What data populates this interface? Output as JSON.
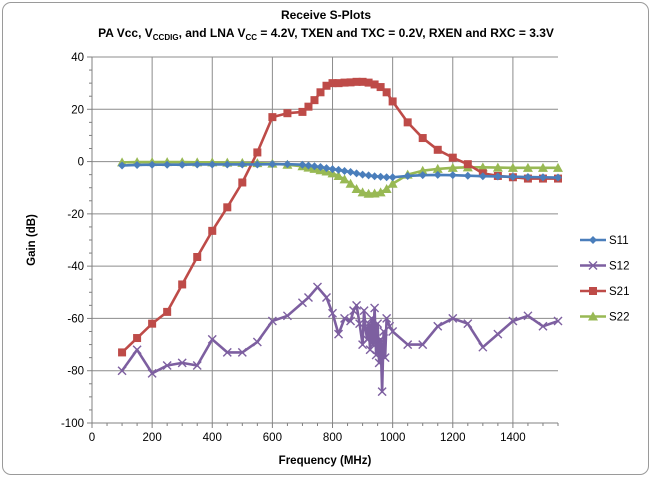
{
  "chart_data": {
    "type": "line",
    "title": "Receive S-Plots",
    "subtitle": {
      "p1": "PA Vcc, V",
      "s1": "CCDIG",
      "p2": ", and LNA V",
      "s2": "CC",
      "p3": " = 4.2V, TXEN and TXC = 0.2V, RXEN and RXC = 3.3V"
    },
    "xlabel": "Frequency (MHz)",
    "ylabel": "Gain (dB)",
    "xlim": [
      0,
      1550
    ],
    "ylim": [
      -100,
      40
    ],
    "xticks": [
      0,
      200,
      400,
      600,
      800,
      1000,
      1200,
      1400
    ],
    "yticks": [
      -100,
      -80,
      -60,
      -40,
      -20,
      0,
      20,
      40
    ],
    "grid": true,
    "legend_position": "right",
    "series": [
      {
        "name": "S11",
        "color": "#4a7ebb",
        "marker": "diamond",
        "x": [
          100,
          150,
          200,
          250,
          300,
          350,
          400,
          450,
          500,
          550,
          600,
          650,
          700,
          720,
          740,
          760,
          780,
          800,
          820,
          840,
          860,
          880,
          900,
          920,
          940,
          960,
          980,
          1000,
          1050,
          1100,
          1150,
          1200,
          1250,
          1300,
          1350,
          1400,
          1450,
          1500,
          1550
        ],
        "y": [
          -1.5,
          -1.3,
          -1.2,
          -1.2,
          -1.2,
          -1.1,
          -1.1,
          -1.1,
          -1.1,
          -1.1,
          -1.0,
          -1.0,
          -1.2,
          -1.5,
          -1.8,
          -2.1,
          -2.5,
          -2.9,
          -3.2,
          -3.6,
          -4.0,
          -4.5,
          -5.0,
          -5.3,
          -5.6,
          -5.8,
          -6.0,
          -6.0,
          -5.5,
          -5.2,
          -5.1,
          -5.2,
          -5.4,
          -5.6,
          -5.7,
          -5.8,
          -5.9,
          -6.0,
          -6.1
        ]
      },
      {
        "name": "S12",
        "color": "#7d5fa0",
        "marker": "x",
        "x": [
          100,
          150,
          200,
          250,
          300,
          350,
          400,
          450,
          500,
          550,
          600,
          650,
          700,
          720,
          750,
          780,
          800,
          820,
          840,
          860,
          870,
          880,
          890,
          900,
          905,
          910,
          915,
          920,
          925,
          930,
          935,
          940,
          945,
          950,
          955,
          960,
          965,
          970,
          975,
          980,
          990,
          1000,
          1050,
          1100,
          1150,
          1200,
          1250,
          1300,
          1350,
          1400,
          1450,
          1500,
          1550
        ],
        "y": [
          -80,
          -72,
          -81,
          -78,
          -77,
          -78,
          -68,
          -73,
          -73,
          -69,
          -61,
          -59,
          -54,
          -52,
          -48,
          -52,
          -58,
          -66,
          -60,
          -61,
          -57,
          -55,
          -62,
          -70,
          -57,
          -64,
          -68,
          -62,
          -72,
          -60,
          -70,
          -56,
          -74,
          -62,
          -77,
          -68,
          -88,
          -65,
          -75,
          -60,
          -63,
          -65,
          -70,
          -70,
          -63,
          -60,
          -62,
          -71,
          -66,
          -61,
          -59,
          -63,
          -61
        ]
      },
      {
        "name": "S21",
        "color": "#be4b48",
        "marker": "square",
        "x": [
          100,
          150,
          200,
          250,
          300,
          350,
          400,
          450,
          500,
          550,
          600,
          650,
          700,
          720,
          740,
          760,
          780,
          800,
          820,
          840,
          860,
          880,
          900,
          920,
          940,
          960,
          980,
          1000,
          1050,
          1100,
          1150,
          1200,
          1250,
          1300,
          1350,
          1400,
          1450,
          1500,
          1550
        ],
        "y": [
          -73,
          -67.5,
          -62,
          -57.5,
          -47,
          -36.5,
          -26.5,
          -17.5,
          -8,
          3.5,
          17,
          18.5,
          19,
          21,
          23.5,
          26.5,
          29,
          30,
          30,
          30.2,
          30.3,
          30.5,
          30.5,
          30.2,
          29.5,
          28.5,
          26.5,
          23,
          15,
          9,
          4.5,
          1.5,
          -1,
          -4.5,
          -5.5,
          -6,
          -6.5,
          -6.5,
          -6.5
        ]
      },
      {
        "name": "S22",
        "color": "#98b954",
        "marker": "triangle",
        "x": [
          100,
          150,
          200,
          250,
          300,
          350,
          400,
          450,
          500,
          550,
          600,
          650,
          700,
          720,
          740,
          760,
          780,
          800,
          820,
          840,
          860,
          880,
          900,
          920,
          940,
          960,
          980,
          1000,
          1050,
          1100,
          1150,
          1200,
          1250,
          1300,
          1350,
          1400,
          1450,
          1500,
          1550
        ],
        "y": [
          -0.3,
          -0.2,
          -0.2,
          -0.2,
          -0.2,
          -0.3,
          -0.3,
          -0.4,
          -0.5,
          -0.6,
          -0.8,
          -1.2,
          -1.8,
          -2.3,
          -2.8,
          -3.3,
          -3.8,
          -4.5,
          -5.5,
          -6.8,
          -8.5,
          -10.5,
          -11.8,
          -12.3,
          -12.2,
          -11.8,
          -10.5,
          -8.5,
          -5,
          -3.5,
          -2.8,
          -2.4,
          -2.2,
          -2.2,
          -2.3,
          -2.4,
          -2.4,
          -2.4,
          -2.4
        ]
      }
    ]
  }
}
